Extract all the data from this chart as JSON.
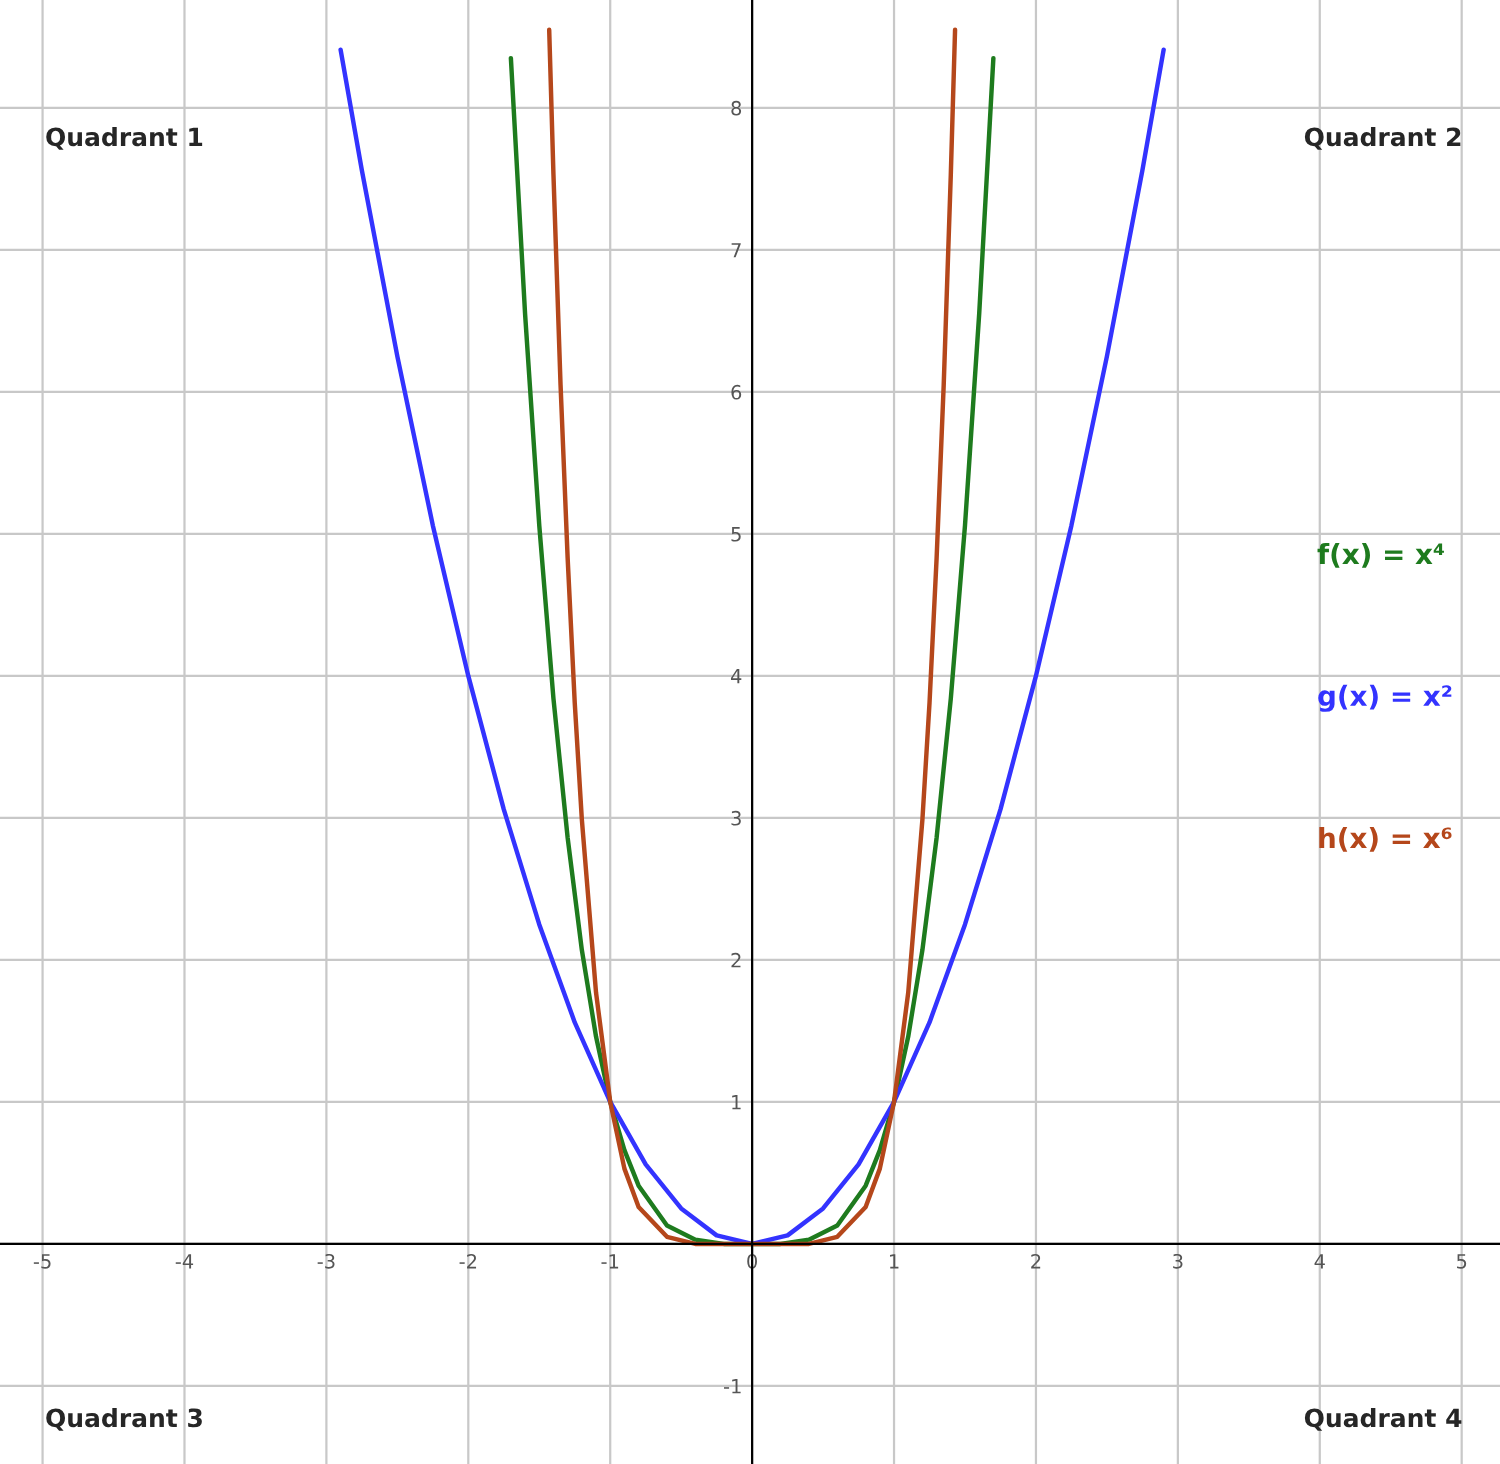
{
  "chart_data": {
    "type": "line",
    "xlim": [
      -5.3,
      5.27
    ],
    "ylim": [
      -1.55,
      8.76
    ],
    "xticks": [
      -5,
      -4,
      -3,
      -2,
      -1,
      0,
      1,
      2,
      3,
      4,
      5
    ],
    "yticks": [
      -1,
      {
        "value": 0,
        "label": null
      },
      1,
      2,
      3,
      4,
      5,
      6,
      7,
      8
    ],
    "grid": true,
    "legend": false,
    "marker": "none",
    "line_style": "solid",
    "annotations": [
      "Quadrant 1",
      "Quadrant 2",
      "Quadrant 3",
      "Quadrant 4"
    ],
    "series": [
      {
        "name": "f(x) = x⁴",
        "color": "#1e7b1e",
        "x": [
          -1.7,
          -1.6,
          -1.5,
          -1.4,
          -1.3,
          -1.2,
          -1.1,
          -1,
          -0.9,
          -0.8,
          -0.6,
          -0.4,
          -0.2,
          0,
          0.2,
          0.4,
          0.6,
          0.8,
          0.9,
          1,
          1.1,
          1.2,
          1.3,
          1.4,
          1.5,
          1.6,
          1.7
        ],
        "values": [
          8.35,
          6.55,
          5.06,
          3.84,
          2.86,
          2.07,
          1.46,
          1,
          0.66,
          0.41,
          0.13,
          0.03,
          0,
          0,
          0,
          0.03,
          0.13,
          0.41,
          0.66,
          1,
          1.46,
          2.07,
          2.86,
          3.84,
          5.06,
          6.55,
          8.35
        ]
      },
      {
        "name": "g(x) = x²",
        "color": "#3333ff",
        "x": [
          -2.9,
          -2.75,
          -2.5,
          -2.25,
          -2,
          -1.75,
          -1.5,
          -1.25,
          -1,
          -0.75,
          -0.5,
          -0.25,
          0,
          0.25,
          0.5,
          0.75,
          1,
          1.25,
          1.5,
          1.75,
          2,
          2.25,
          2.5,
          2.75,
          2.9
        ],
        "values": [
          8.41,
          7.56,
          6.25,
          5.06,
          4,
          3.06,
          2.25,
          1.56,
          1,
          0.56,
          0.25,
          0.06,
          0,
          0.06,
          0.25,
          0.56,
          1,
          1.56,
          2.25,
          3.06,
          4,
          5.06,
          6.25,
          7.56,
          8.41
        ]
      },
      {
        "name": "h(x) = x⁶",
        "color": "#b5471b",
        "x": [
          -1.43,
          -1.4,
          -1.35,
          -1.3,
          -1.25,
          -1.2,
          -1.1,
          -1,
          -0.9,
          -0.8,
          -0.6,
          -0.4,
          0,
          0.4,
          0.6,
          0.8,
          0.9,
          1,
          1.1,
          1.2,
          1.25,
          1.3,
          1.35,
          1.4,
          1.43
        ],
        "values": [
          8.55,
          7.53,
          6.05,
          4.83,
          3.81,
          2.99,
          1.77,
          1,
          0.53,
          0.26,
          0.05,
          0,
          0,
          0,
          0.05,
          0.26,
          0.53,
          1,
          1.77,
          2.99,
          3.81,
          4.83,
          6.05,
          7.53,
          8.55
        ]
      }
    ]
  }
}
